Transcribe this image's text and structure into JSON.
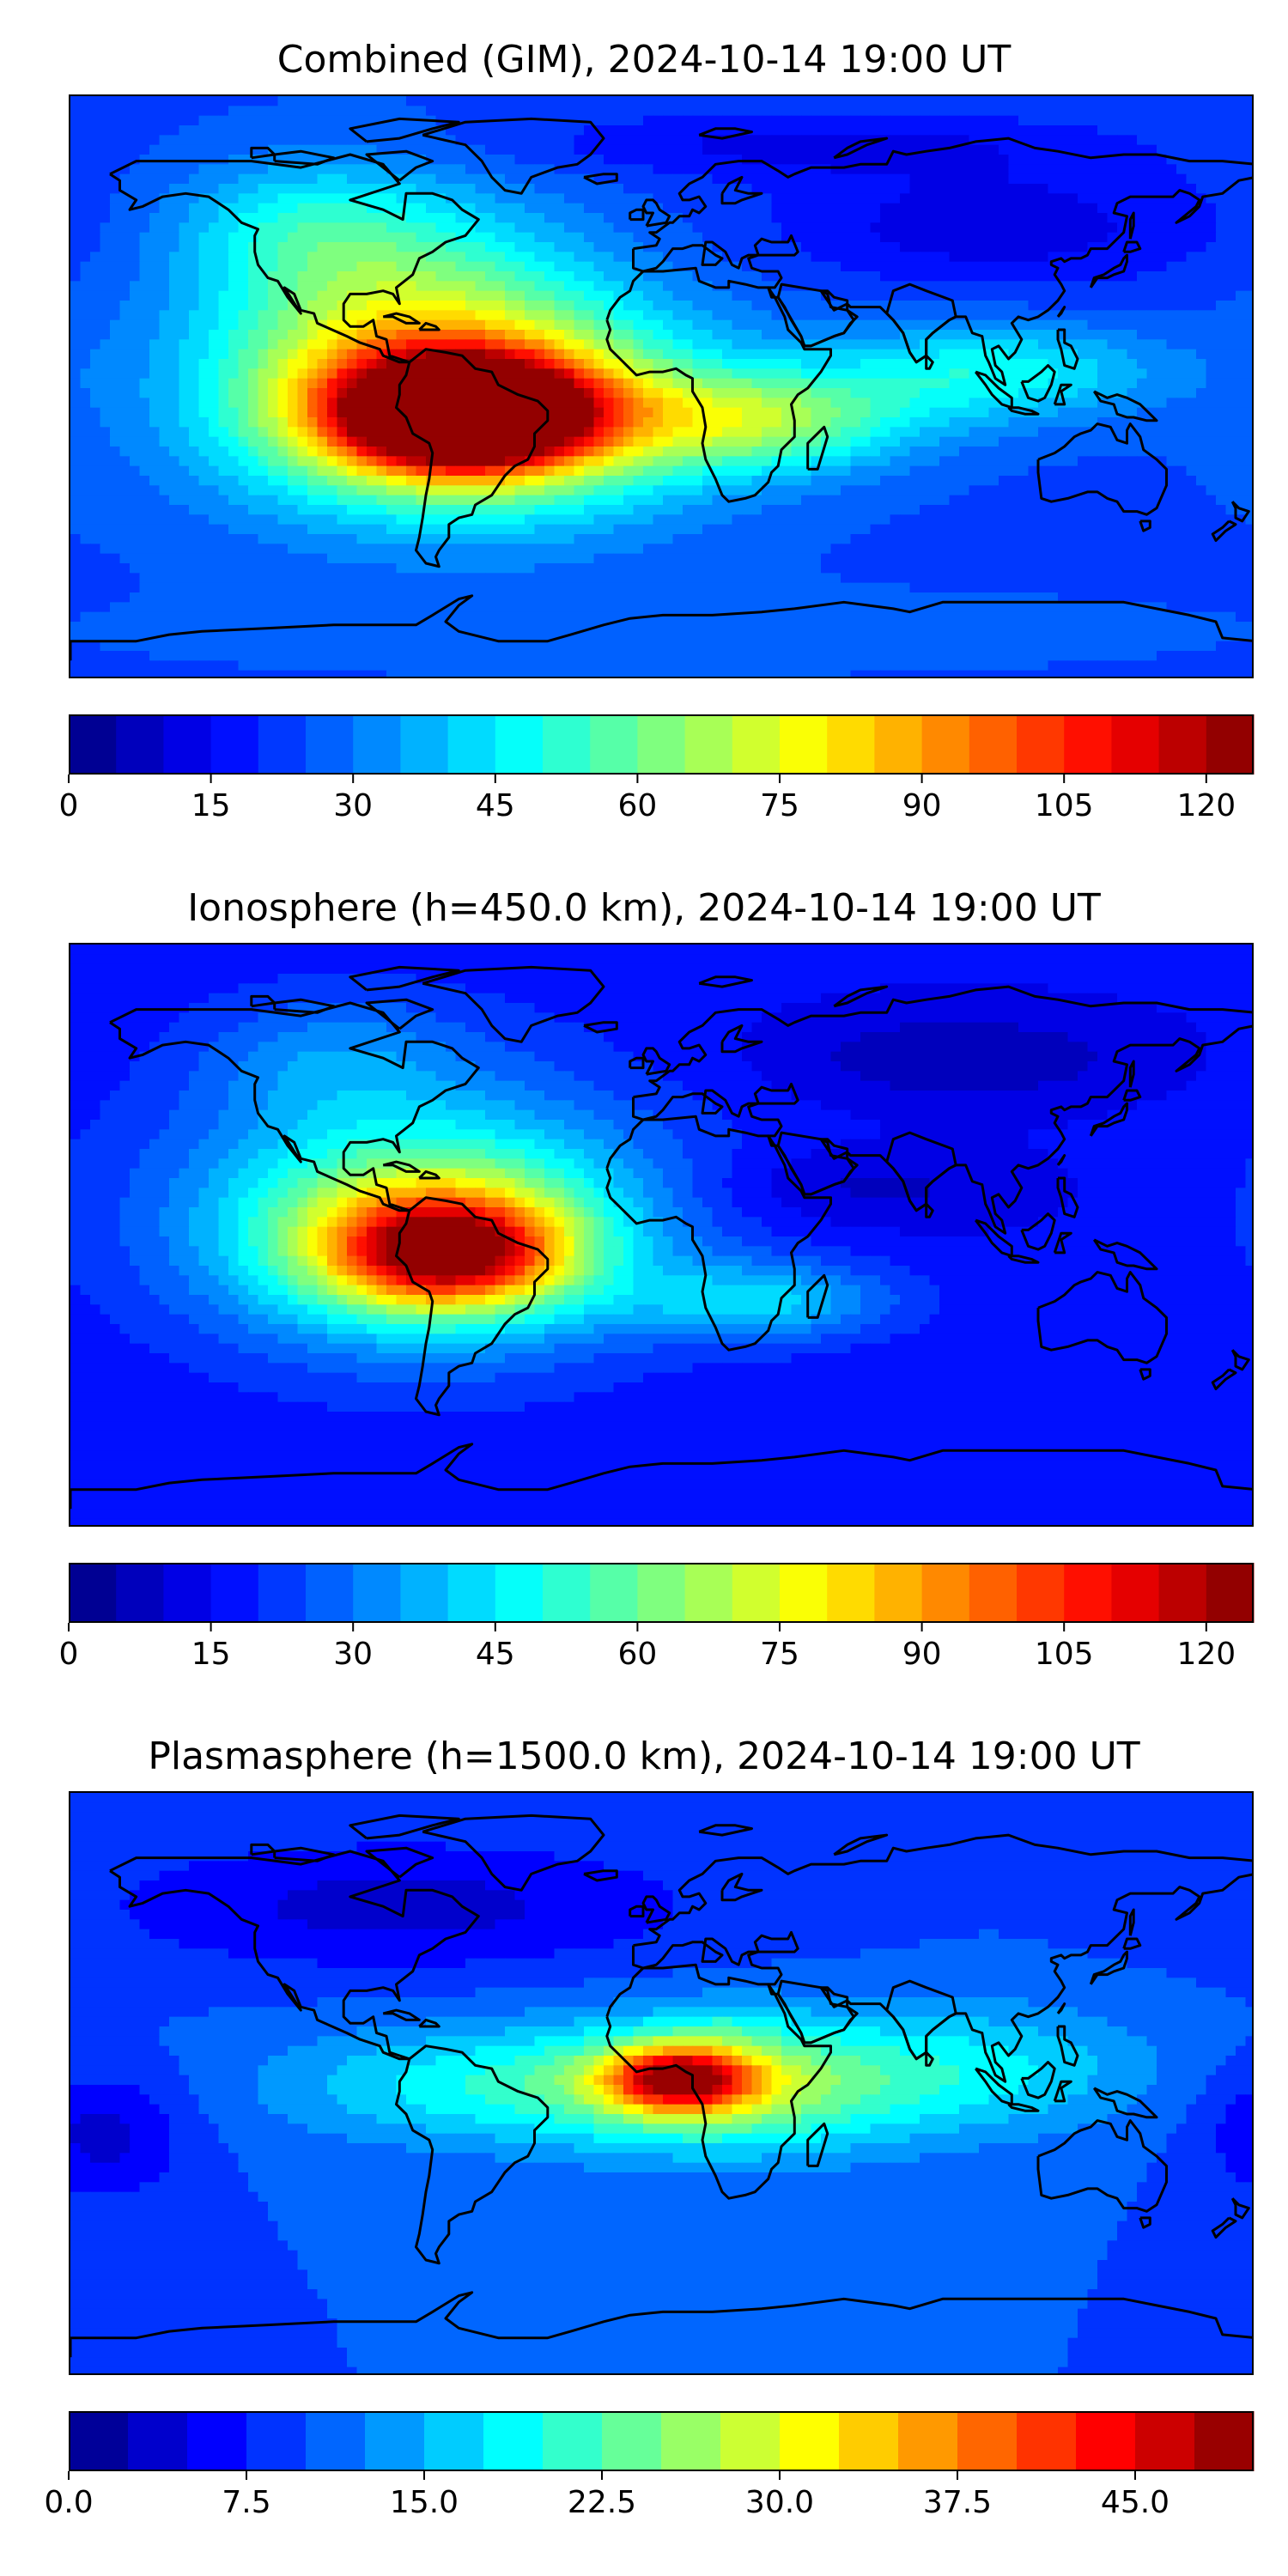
{
  "chart_data": [
    {
      "type": "heatmap",
      "title": "Combined (GIM), 2024-10-14 19:00 UT",
      "colorbar": {
        "min": 0,
        "max": 125,
        "levels": 25,
        "ticks": [
          0,
          15,
          30,
          45,
          60,
          75,
          90,
          105,
          120
        ],
        "tick_labels": [
          "0",
          "15",
          "30",
          "45",
          "60",
          "75",
          "90",
          "105",
          "120"
        ]
      },
      "background_value": 24,
      "features": [
        {
          "lon": -60,
          "lat": -8,
          "value": 104,
          "rlon": 32,
          "rlat": 14
        },
        {
          "lon": -60,
          "lat": -8,
          "value": 86,
          "rlon": 50,
          "rlat": 22
        },
        {
          "lon": -60,
          "lat": -5,
          "value": 64,
          "rlon": 75,
          "rlat": 36
        },
        {
          "lon": -80,
          "lat": 25,
          "value": 52,
          "rlon": 55,
          "rlat": 35
        },
        {
          "lon": 30,
          "lat": -10,
          "value": 60,
          "rlon": 45,
          "rlat": 15
        },
        {
          "lon": 100,
          "lat": 5,
          "value": 48,
          "rlon": 50,
          "rlat": 15
        },
        {
          "lon": -110,
          "lat": 50,
          "value": 40,
          "rlon": 40,
          "rlat": 20
        },
        {
          "lon": 100,
          "lat": 50,
          "value": 12,
          "rlon": 70,
          "rlat": 20
        },
        {
          "lon": 40,
          "lat": 75,
          "value": 14,
          "rlon": 90,
          "rlat": 10
        },
        {
          "lon": 0,
          "lat": -75,
          "value": 28,
          "rlon": 150,
          "rlat": 12
        }
      ]
    },
    {
      "type": "heatmap",
      "title": "Ionosphere  (h=450.0 km), 2024-10-14 19:00 UT",
      "colorbar": {
        "min": 0,
        "max": 125,
        "levels": 25,
        "ticks": [
          0,
          15,
          30,
          45,
          60,
          75,
          90,
          105,
          120
        ],
        "tick_labels": [
          "0",
          "15",
          "30",
          "45",
          "60",
          "75",
          "90",
          "105",
          "120"
        ]
      },
      "background_value": 16,
      "features": [
        {
          "lon": -65,
          "lat": -5,
          "value": 78,
          "rlon": 34,
          "rlat": 16
        },
        {
          "lon": -70,
          "lat": 0,
          "value": 60,
          "rlon": 55,
          "rlat": 28
        },
        {
          "lon": -75,
          "lat": 10,
          "value": 40,
          "rlon": 80,
          "rlat": 45
        },
        {
          "lon": 30,
          "lat": -20,
          "value": 40,
          "rlon": 40,
          "rlat": 12
        },
        {
          "lon": 60,
          "lat": 15,
          "value": 8,
          "rlon": 50,
          "rlat": 12
        },
        {
          "lon": 90,
          "lat": 55,
          "value": 6,
          "rlon": 60,
          "rlat": 15
        },
        {
          "lon": -100,
          "lat": 55,
          "value": 28,
          "rlon": 40,
          "rlat": 20
        }
      ]
    },
    {
      "type": "heatmap",
      "title": "Plasmasphere (h=1500.0 km), 2024-10-14 19:00 UT",
      "colorbar": {
        "min": 0,
        "max": 50,
        "levels": 20,
        "ticks": [
          0,
          7.5,
          15,
          22.5,
          30,
          37.5,
          45
        ],
        "tick_labels": [
          "0.0",
          "7.5",
          "15.0",
          "22.5",
          "30.0",
          "37.5",
          "45.0"
        ]
      },
      "background_value": 10,
      "features": [
        {
          "lon": 5,
          "lat": 2,
          "value": 36,
          "rlon": 22,
          "rlat": 10
        },
        {
          "lon": 20,
          "lat": 0,
          "value": 27,
          "rlon": 55,
          "rlat": 20
        },
        {
          "lon": -60,
          "lat": 0,
          "value": 18,
          "rlon": 60,
          "rlat": 18
        },
        {
          "lon": 100,
          "lat": 5,
          "value": 17,
          "rlon": 50,
          "rlat": 20
        },
        {
          "lon": -80,
          "lat": 55,
          "value": 4,
          "rlon": 90,
          "rlat": 20
        },
        {
          "lon": -170,
          "lat": -15,
          "value": 4,
          "rlon": 25,
          "rlat": 20
        },
        {
          "lon": 20,
          "lat": 20,
          "value": 12,
          "rlon": 15,
          "rlat": 8
        }
      ]
    }
  ],
  "colors": {
    "jet_stops": [
      "#00007f",
      "#0000ff",
      "#007fff",
      "#00ffff",
      "#7fff7f",
      "#ffff00",
      "#ff7f00",
      "#ff0000",
      "#7f0000"
    ],
    "coastline": "#000000"
  }
}
